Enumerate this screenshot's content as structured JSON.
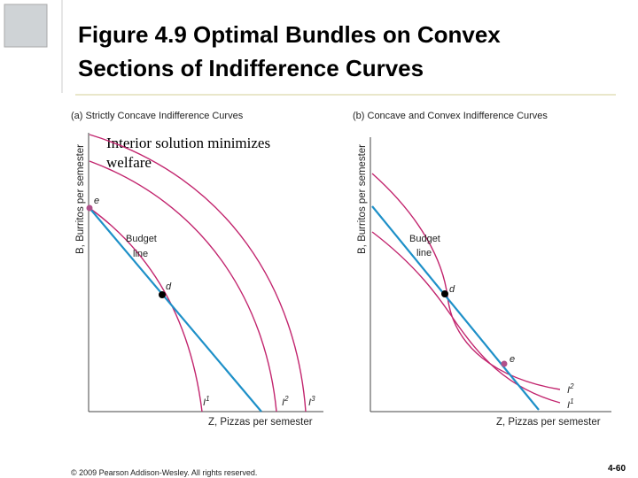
{
  "header": {
    "title_lines": [
      "Figure 4.9  Optimal Bundles on Convex",
      "Sections of Indifference Curves"
    ]
  },
  "panels": [
    {
      "title": "(a) Strictly Concave Indifference Curves",
      "y_label": "B, Burritos per semester",
      "x_label": "Z, Pizzas per semester",
      "annotation_lines": [
        "Interior solution minimizes",
        "welfare"
      ],
      "budget_label_lines": [
        "Budget",
        "line"
      ],
      "points": [
        "e",
        "d"
      ],
      "curves": [
        {
          "text": "I",
          "sup": "1"
        },
        {
          "text": "I",
          "sup": "2"
        },
        {
          "text": "I",
          "sup": "3"
        }
      ]
    },
    {
      "title": "(b) Concave and Convex Indifference Curves",
      "y_label": "B, Burritos per semester",
      "x_label": "Z, Pizzas per semester",
      "budget_label_lines": [
        "Budget",
        "line"
      ],
      "points": [
        "d",
        "e"
      ],
      "curves": [
        {
          "text": "I",
          "sup": "2"
        },
        {
          "text": "I",
          "sup": "1"
        }
      ]
    }
  ],
  "footer": {
    "copyright": "© 2009 Pearson Addison-Wesley. All rights reserved.",
    "page": "4-60"
  }
}
